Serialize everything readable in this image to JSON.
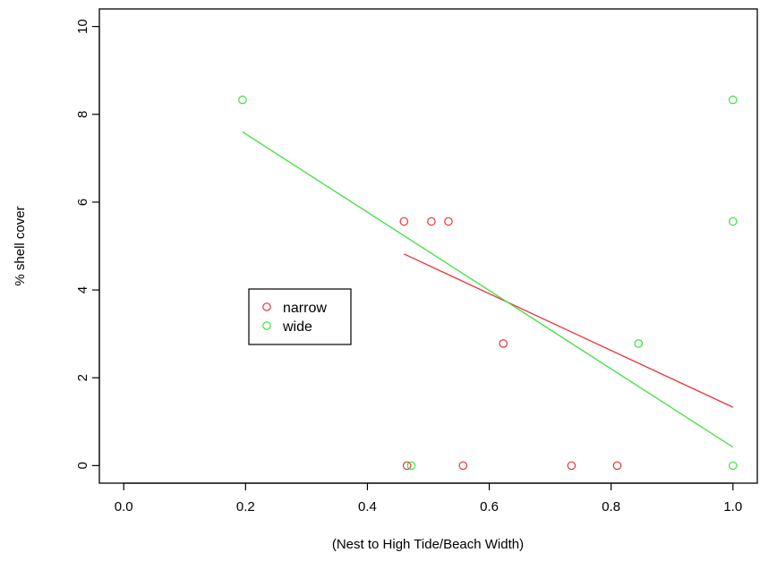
{
  "chart_data": {
    "type": "scatter",
    "title": "",
    "xlabel": "(Nest to High Tide/Beach Width)",
    "ylabel": "% shell cover",
    "xlim": [
      -0.04,
      1.04
    ],
    "ylim": [
      -0.4,
      10.4
    ],
    "x_ticks": [
      0.0,
      0.2,
      0.4,
      0.6,
      0.8,
      1.0
    ],
    "x_tick_labels": [
      "0.0",
      "0.2",
      "0.4",
      "0.6",
      "0.8",
      "1.0"
    ],
    "y_ticks": [
      0,
      2,
      4,
      6,
      8,
      10
    ],
    "y_tick_labels": [
      "0",
      "2",
      "4",
      "6",
      "8",
      "10"
    ],
    "grid": false,
    "legend_position": "left-center",
    "series": [
      {
        "name": "narrow",
        "color": "#e8333a",
        "points": [
          {
            "x": 0.46,
            "y": 5.56
          },
          {
            "x": 0.505,
            "y": 5.56
          },
          {
            "x": 0.533,
            "y": 5.56
          },
          {
            "x": 0.623,
            "y": 2.78
          },
          {
            "x": 0.465,
            "y": 0
          },
          {
            "x": 0.557,
            "y": 0
          },
          {
            "x": 0.735,
            "y": 0
          },
          {
            "x": 0.81,
            "y": 0
          }
        ],
        "fit_line": {
          "x": [
            0.46,
            1.0
          ],
          "y": [
            4.82,
            1.33
          ]
        }
      },
      {
        "name": "wide",
        "color": "#3fe03f",
        "points": [
          {
            "x": 0.195,
            "y": 8.33
          },
          {
            "x": 1.0,
            "y": 8.33
          },
          {
            "x": 1.0,
            "y": 5.56
          },
          {
            "x": 0.845,
            "y": 2.78
          },
          {
            "x": 0.472,
            "y": 0
          },
          {
            "x": 1.0,
            "y": 0
          }
        ],
        "fit_line": {
          "x": [
            0.195,
            1.0
          ],
          "y": [
            7.6,
            0.42
          ]
        }
      }
    ]
  }
}
